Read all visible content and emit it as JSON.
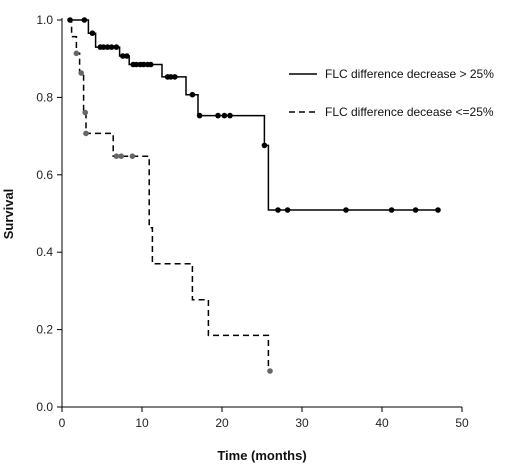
{
  "chart_data": {
    "type": "line",
    "title": "",
    "xlabel": "Time (months)",
    "ylabel": "Survival",
    "xlim": [
      0,
      50
    ],
    "ylim": [
      0,
      1.0
    ],
    "x_ticks": [
      0,
      10,
      20,
      30,
      40,
      50
    ],
    "y_ticks": [
      0.0,
      0.2,
      0.4,
      0.6,
      0.8,
      1.0
    ],
    "x_tick_labels": [
      "0",
      "10",
      "20",
      "30",
      "40",
      "50"
    ],
    "y_tick_labels": [
      "0.0",
      "0.2",
      "0.4",
      "0.6",
      "0.8",
      "1.0"
    ],
    "grid": false,
    "legend_position": "top-right",
    "series": [
      {
        "name": "FLC difference decrease > 25%",
        "line_style": "solid",
        "color": "#000000",
        "marker_color": "#000000",
        "steps": [
          [
            0.8,
            1.0
          ],
          [
            3.3,
            0.966
          ],
          [
            4.2,
            0.93
          ],
          [
            7.2,
            0.907
          ],
          [
            8.4,
            0.885
          ],
          [
            12.5,
            0.853
          ],
          [
            15.5,
            0.807
          ],
          [
            17.0,
            0.753
          ],
          [
            25.3,
            0.676
          ],
          [
            25.8,
            0.509
          ],
          [
            47.0,
            0.509
          ]
        ],
        "censor_points": [
          [
            1.0,
            1.0
          ],
          [
            2.8,
            1.0
          ],
          [
            3.8,
            0.966
          ],
          [
            4.8,
            0.93
          ],
          [
            5.2,
            0.93
          ],
          [
            5.7,
            0.93
          ],
          [
            6.2,
            0.93
          ],
          [
            6.8,
            0.93
          ],
          [
            7.6,
            0.907
          ],
          [
            8.1,
            0.907
          ],
          [
            8.9,
            0.885
          ],
          [
            9.3,
            0.885
          ],
          [
            9.8,
            0.885
          ],
          [
            10.2,
            0.885
          ],
          [
            10.7,
            0.885
          ],
          [
            11.1,
            0.885
          ],
          [
            13.2,
            0.853
          ],
          [
            13.6,
            0.853
          ],
          [
            14.1,
            0.853
          ],
          [
            16.3,
            0.807
          ],
          [
            17.2,
            0.753
          ],
          [
            19.5,
            0.753
          ],
          [
            20.3,
            0.753
          ],
          [
            21.0,
            0.753
          ],
          [
            25.3,
            0.676
          ],
          [
            27.0,
            0.509
          ],
          [
            28.2,
            0.509
          ],
          [
            35.5,
            0.509
          ],
          [
            41.2,
            0.509
          ],
          [
            44.2,
            0.509
          ],
          [
            47.0,
            0.509
          ]
        ]
      },
      {
        "name": "FLC difference decease <=25%",
        "line_style": "dashed",
        "color": "#000000",
        "marker_color": "#666666",
        "steps": [
          [
            0.8,
            1.0
          ],
          [
            1.2,
            0.957
          ],
          [
            1.8,
            0.914
          ],
          [
            2.2,
            0.863
          ],
          [
            2.7,
            0.761
          ],
          [
            3.0,
            0.707
          ],
          [
            6.4,
            0.648
          ],
          [
            10.9,
            0.463
          ],
          [
            11.3,
            0.37
          ],
          [
            16.3,
            0.277
          ],
          [
            18.3,
            0.185
          ],
          [
            25.8,
            0.093
          ]
        ],
        "censor_points": [
          [
            1.8,
            0.914
          ],
          [
            2.4,
            0.863
          ],
          [
            2.9,
            0.761
          ],
          [
            3.0,
            0.707
          ],
          [
            6.8,
            0.648
          ],
          [
            7.4,
            0.648
          ],
          [
            8.8,
            0.648
          ],
          [
            26.0,
            0.093
          ]
        ]
      }
    ]
  }
}
